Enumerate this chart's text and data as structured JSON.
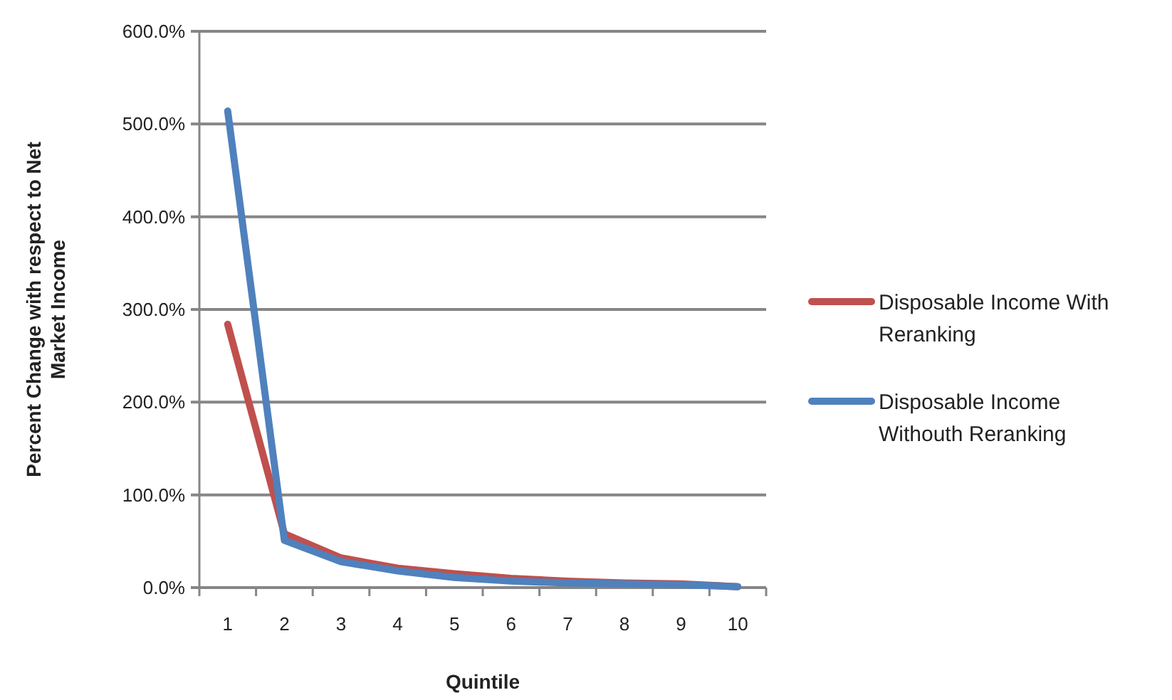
{
  "chart_data": {
    "type": "line",
    "xlabel": "Quintile",
    "ylabel": "Percent Change with respect to Net Market Income",
    "categories": [
      "1",
      "2",
      "3",
      "4",
      "5",
      "6",
      "7",
      "8",
      "9",
      "10"
    ],
    "series": [
      {
        "name": "Disposable Income With Reranking",
        "color": "#c0504d",
        "values": [
          284,
          58,
          32,
          21,
          15,
          10,
          7,
          5,
          4,
          1
        ]
      },
      {
        "name": "Disposable Income Withouth Reranking",
        "color": "#4f81bd",
        "values": [
          514,
          51,
          28,
          18,
          11,
          7,
          5,
          4,
          3,
          1
        ]
      }
    ],
    "ylim": [
      0,
      600
    ],
    "yticks": [
      {
        "value": 0,
        "label": "0.0%"
      },
      {
        "value": 100,
        "label": "100.0%"
      },
      {
        "value": 200,
        "label": "200.0%"
      },
      {
        "value": 300,
        "label": "300.0%"
      },
      {
        "value": 400,
        "label": "400.0%"
      },
      {
        "value": 500,
        "label": "500.0%"
      },
      {
        "value": 600,
        "label": "600.0%"
      }
    ],
    "grid": "y",
    "legend": "right",
    "marker": "none",
    "line_style": "solid"
  }
}
